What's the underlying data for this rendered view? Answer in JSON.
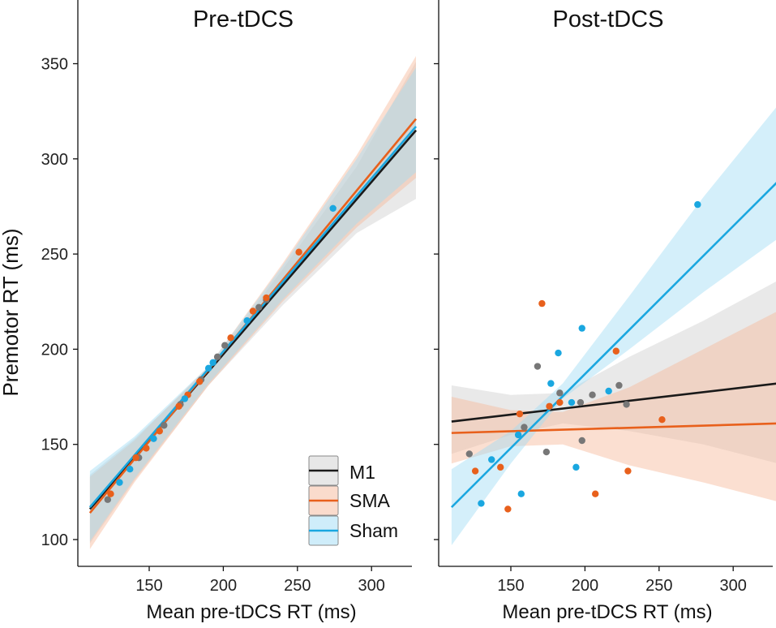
{
  "figure": {
    "ylabel": "Premotor RT (ms)"
  },
  "legend": {
    "placement": "bottom-right of left panel",
    "entries": [
      {
        "label": "M1",
        "series": "M1"
      },
      {
        "label": "SMA",
        "series": "SMA"
      },
      {
        "label": "Sham",
        "series": "Sham"
      }
    ]
  },
  "colors": {
    "M1": "#1a1a1a",
    "M1_band": "#cfcfcf",
    "M1_point": "#777777",
    "SMA": "#e8601c",
    "SMA_band": "#f6b89a",
    "Sham": "#1aa7e0",
    "Sham_band": "#9fdcf5"
  },
  "chart_data": [
    {
      "type": "scatter",
      "title": "Pre-tDCS",
      "xlabel": "Mean pre-tDCS RT (ms)",
      "ylabel": "Premotor RT (ms)",
      "xlim": [
        110,
        330
      ],
      "ylim": [
        95,
        370
      ],
      "xticks": [
        150,
        200,
        250,
        300
      ],
      "yticks": [
        100,
        150,
        200,
        250,
        300,
        350
      ],
      "grid": false,
      "series": [
        {
          "name": "M1",
          "fit": {
            "x0": 110,
            "y0": 116,
            "x1": 330,
            "y1": 315
          },
          "band": [
            {
              "x": 110,
              "lo": 98,
              "hi": 134
            },
            {
              "x": 140,
              "lo": 131,
              "hi": 153
            },
            {
              "x": 190,
              "lo": 181,
              "hi": 190
            },
            {
              "x": 240,
              "lo": 223,
              "hi": 242
            },
            {
              "x": 290,
              "lo": 261,
              "hi": 296
            },
            {
              "x": 330,
              "lo": 279,
              "hi": 351
            }
          ],
          "points": [
            [
              122,
              121
            ],
            [
              143,
              143
            ],
            [
              160,
              160
            ],
            [
              171,
              171
            ],
            [
              185,
              184
            ],
            [
              196,
              196
            ],
            [
              201,
              202
            ],
            [
              224,
              222
            ],
            [
              229,
              226
            ]
          ]
        },
        {
          "name": "SMA",
          "fit": {
            "x0": 110,
            "y0": 114,
            "x1": 330,
            "y1": 321
          },
          "band": [
            {
              "x": 110,
              "lo": 95,
              "hi": 133
            },
            {
              "x": 140,
              "lo": 130,
              "hi": 152
            },
            {
              "x": 190,
              "lo": 181,
              "hi": 191
            },
            {
              "x": 240,
              "lo": 225,
              "hi": 245
            },
            {
              "x": 290,
              "lo": 264,
              "hi": 302
            },
            {
              "x": 330,
              "lo": 290,
              "hi": 354
            }
          ],
          "points": [
            [
              124,
              124
            ],
            [
              141,
              143
            ],
            [
              148,
              148
            ],
            [
              157,
              157
            ],
            [
              170,
              170
            ],
            [
              176,
              176
            ],
            [
              184,
              183
            ],
            [
              205,
              206
            ],
            [
              220,
              220
            ],
            [
              229,
              227
            ],
            [
              251,
              251
            ]
          ]
        },
        {
          "name": "Sham",
          "fit": {
            "x0": 110,
            "y0": 117,
            "x1": 330,
            "y1": 317
          },
          "band": [
            {
              "x": 110,
              "lo": 99,
              "hi": 136
            },
            {
              "x": 140,
              "lo": 132,
              "hi": 154
            },
            {
              "x": 190,
              "lo": 182,
              "hi": 191
            },
            {
              "x": 240,
              "lo": 226,
              "hi": 244
            },
            {
              "x": 290,
              "lo": 266,
              "hi": 300
            },
            {
              "x": 330,
              "lo": 293,
              "hi": 348
            }
          ],
          "points": [
            [
              130,
              130
            ],
            [
              137,
              137
            ],
            [
              153,
              153
            ],
            [
              174,
              174
            ],
            [
              190,
              190
            ],
            [
              193,
              193
            ],
            [
              216,
              215
            ],
            [
              274,
              274
            ]
          ]
        }
      ]
    },
    {
      "type": "scatter",
      "title": "Post-tDCS",
      "xlabel": "Mean pre-tDCS RT (ms)",
      "ylabel": "Premotor RT (ms)",
      "xlim": [
        110,
        330
      ],
      "ylim": [
        95,
        370
      ],
      "xticks": [
        150,
        200,
        250,
        300
      ],
      "yticks": [
        100,
        150,
        200,
        250,
        300,
        350
      ],
      "grid": false,
      "series": [
        {
          "name": "M1",
          "fit": {
            "x0": 110,
            "y0": 162,
            "x1": 330,
            "y1": 182
          },
          "band": [
            {
              "x": 110,
              "lo": 145,
              "hi": 181
            },
            {
              "x": 150,
              "lo": 155,
              "hi": 176
            },
            {
              "x": 185,
              "lo": 161,
              "hi": 177
            },
            {
              "x": 230,
              "lo": 157,
              "hi": 196
            },
            {
              "x": 280,
              "lo": 150,
              "hi": 215
            },
            {
              "x": 330,
              "lo": 140,
              "hi": 236
            }
          ],
          "points": [
            [
              122,
              145
            ],
            [
              159,
              159
            ],
            [
              168,
              191
            ],
            [
              174,
              146
            ],
            [
              183,
              177
            ],
            [
              197,
              172
            ],
            [
              198,
              152
            ],
            [
              205,
              176
            ],
            [
              223,
              181
            ],
            [
              228,
              171
            ]
          ]
        },
        {
          "name": "SMA",
          "fit": {
            "x0": 110,
            "y0": 156,
            "x1": 330,
            "y1": 161
          },
          "band": [
            {
              "x": 110,
              "lo": 140,
              "hi": 175
            },
            {
              "x": 150,
              "lo": 149,
              "hi": 168
            },
            {
              "x": 185,
              "lo": 150,
              "hi": 167
            },
            {
              "x": 230,
              "lo": 139,
              "hi": 180
            },
            {
              "x": 280,
              "lo": 130,
              "hi": 200
            },
            {
              "x": 330,
              "lo": 120,
              "hi": 220
            }
          ],
          "points": [
            [
              126,
              136
            ],
            [
              143,
              138
            ],
            [
              148,
              116
            ],
            [
              156,
              166
            ],
            [
              171,
              224
            ],
            [
              176,
              170
            ],
            [
              183,
              172
            ],
            [
              207,
              124
            ],
            [
              221,
              199
            ],
            [
              229,
              136
            ],
            [
              252,
              163
            ]
          ]
        },
        {
          "name": "Sham",
          "fit": {
            "x0": 110,
            "y0": 117,
            "x1": 330,
            "y1": 288
          },
          "band": [
            {
              "x": 110,
              "lo": 97,
              "hi": 137
            },
            {
              "x": 150,
              "lo": 140,
              "hi": 157
            },
            {
              "x": 185,
              "lo": 174,
              "hi": 182
            },
            {
              "x": 230,
              "lo": 200,
              "hi": 228
            },
            {
              "x": 280,
              "lo": 230,
              "hi": 280
            },
            {
              "x": 330,
              "lo": 258,
              "hi": 328
            }
          ],
          "points": [
            [
              130,
              119
            ],
            [
              137,
              142
            ],
            [
              155,
              155
            ],
            [
              157,
              124
            ],
            [
              177,
              182
            ],
            [
              182,
              198
            ],
            [
              191,
              172
            ],
            [
              194,
              138
            ],
            [
              198,
              211
            ],
            [
              216,
              178
            ],
            [
              276,
              276
            ]
          ]
        }
      ]
    }
  ]
}
